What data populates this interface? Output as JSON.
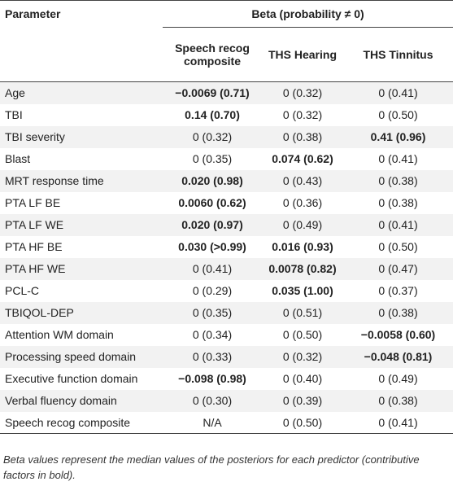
{
  "table": {
    "header": {
      "parameter": "Parameter",
      "group": "Beta (probability ≠ 0)",
      "columns": [
        "Speech recog composite",
        "THS Hearing",
        "THS Tinnitus"
      ]
    },
    "rows": [
      [
        "Age",
        {
          "text": "−0.0069 (0.71)",
          "bold": true
        },
        "0 (0.32)",
        "0 (0.41)"
      ],
      [
        "TBI",
        {
          "text": "0.14 (0.70)",
          "bold": true
        },
        "0 (0.32)",
        "0 (0.50)"
      ],
      [
        "TBI severity",
        "0 (0.32)",
        "0 (0.38)",
        {
          "text": "0.41 (0.96)",
          "bold": true
        }
      ],
      [
        "Blast",
        "0 (0.35)",
        {
          "text": "0.074 (0.62)",
          "bold": true
        },
        "0 (0.41)"
      ],
      [
        "MRT response time",
        {
          "text": "0.020 (0.98)",
          "bold": true
        },
        "0 (0.43)",
        "0 (0.38)"
      ],
      [
        "PTA LF BE",
        {
          "text": "0.0060 (0.62)",
          "bold": true
        },
        "0 (0.36)",
        "0 (0.38)"
      ],
      [
        "PTA LF WE",
        {
          "text": "0.020 (0.97)",
          "bold": true
        },
        "0 (0.49)",
        "0 (0.41)"
      ],
      [
        "PTA HF BE",
        {
          "text": "0.030 (>0.99)",
          "bold": true
        },
        {
          "text": "0.016 (0.93)",
          "bold": true
        },
        "0 (0.50)"
      ],
      [
        "PTA HF WE",
        "0 (0.41)",
        {
          "text": "0.0078 (0.82)",
          "bold": true
        },
        "0 (0.47)"
      ],
      [
        "PCL-C",
        "0 (0.29)",
        {
          "text": "0.035 (1.00)",
          "bold": true
        },
        "0 (0.37)"
      ],
      [
        "TBIQOL-DEP",
        "0 (0.35)",
        "0 (0.51)",
        "0 (0.38)"
      ],
      [
        "Attention WM domain",
        "0 (0.34)",
        "0 (0.50)",
        {
          "text": "−0.0058 (0.60)",
          "bold": true
        }
      ],
      [
        "Processing speed domain",
        "0 (0.33)",
        "0 (0.32)",
        {
          "text": "−0.048 (0.81)",
          "bold": true
        }
      ],
      [
        "Executive function domain",
        {
          "text": "−0.098 (0.98)",
          "bold": true
        },
        "0 (0.40)",
        "0 (0.49)"
      ],
      [
        "Verbal fluency domain",
        "0 (0.30)",
        "0 (0.39)",
        "0 (0.38)"
      ],
      [
        "Speech recog composite",
        "N/A",
        "0 (0.50)",
        "0 (0.41)"
      ]
    ],
    "footnote": "Beta values represent the median values of the posteriors for each predictor (contributive factors in bold)."
  }
}
